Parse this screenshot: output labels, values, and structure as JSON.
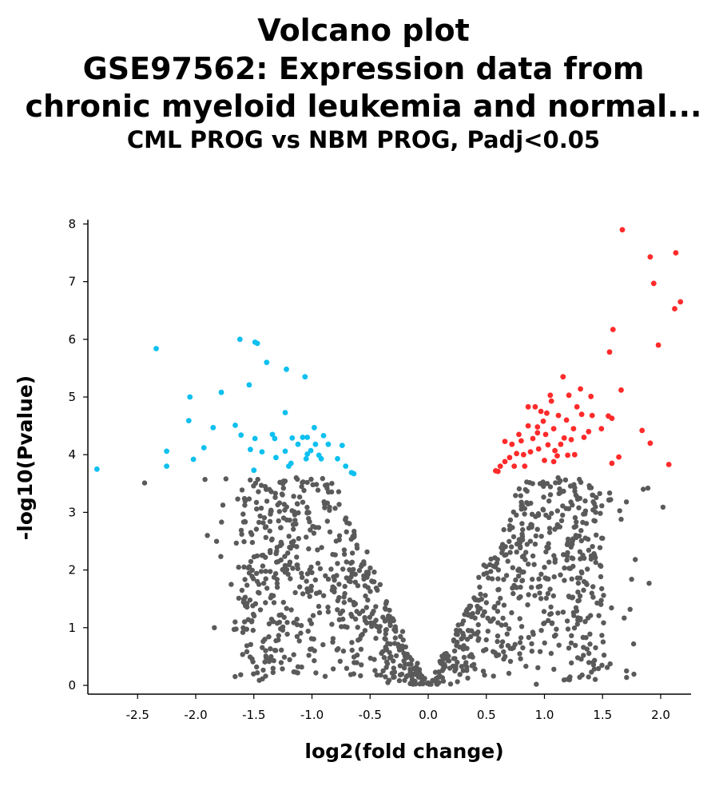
{
  "chart_data": {
    "type": "scatter",
    "title": "Volcano plot",
    "subtitle_lines": [
      "GSE97562: Expression data from",
      "chronic myeloid leukemia and normal...",
      "CML PROG vs NBM PROG, Padj<0.05"
    ],
    "xlabel": "log2(fold change)",
    "ylabel": "-log10(Pvalue)",
    "xlim": [
      -2.95,
      2.27
    ],
    "ylim": [
      -0.15,
      8.05
    ],
    "xticks": [
      -2.5,
      -2.0,
      -1.5,
      -1.0,
      -0.5,
      0.0,
      0.5,
      1.0,
      1.5,
      2.0
    ],
    "xtick_labels": [
      "-2.5",
      "-2.0",
      "-1.5",
      "-1.0",
      "-0.5",
      "0.0",
      "0.5",
      "1.0",
      "1.5",
      "2.0"
    ],
    "yticks": [
      0,
      1,
      2,
      3,
      4,
      5,
      6,
      7,
      8
    ],
    "ytick_labels": [
      "0",
      "1",
      "2",
      "3",
      "4",
      "5",
      "6",
      "7",
      "8"
    ],
    "grid": false,
    "colors": {
      "up": "#ff2a2a",
      "down": "#0dc0f0",
      "ns": "#5a5a5a"
    },
    "series": [
      {
        "group": "down",
        "points": [
          [
            -2.85,
            3.75
          ],
          [
            -2.34,
            5.84
          ],
          [
            -2.25,
            4.06
          ],
          [
            -2.25,
            3.8
          ],
          [
            -2.05,
            5.0
          ],
          [
            -2.06,
            4.59
          ],
          [
            -2.02,
            3.92
          ],
          [
            -1.93,
            4.12
          ],
          [
            -1.85,
            4.47
          ],
          [
            -1.78,
            5.08
          ],
          [
            -1.66,
            4.51
          ],
          [
            -1.62,
            6.0
          ],
          [
            -1.61,
            4.34
          ],
          [
            -1.54,
            5.21
          ],
          [
            -1.53,
            4.09
          ],
          [
            -1.49,
            5.95
          ],
          [
            -1.47,
            5.93
          ],
          [
            -1.49,
            4.28
          ],
          [
            -1.43,
            4.05
          ],
          [
            -1.39,
            5.6
          ],
          [
            -1.34,
            4.35
          ],
          [
            -1.32,
            4.28
          ],
          [
            -1.31,
            3.95
          ],
          [
            -1.22,
            5.48
          ],
          [
            -1.23,
            4.73
          ],
          [
            -1.23,
            4.06
          ],
          [
            -1.2,
            3.8
          ],
          [
            -1.17,
            4.29
          ],
          [
            -1.12,
            4.18
          ],
          [
            -1.08,
            4.3
          ],
          [
            -1.06,
            5.35
          ],
          [
            -1.04,
            4.3
          ],
          [
            -1.04,
            4.01
          ],
          [
            -1.01,
            4.07
          ],
          [
            -0.98,
            4.47
          ],
          [
            -0.97,
            4.18
          ],
          [
            -0.94,
            3.99
          ],
          [
            -0.92,
            3.93
          ],
          [
            -0.9,
            4.33
          ],
          [
            -0.86,
            4.18
          ],
          [
            -0.78,
            3.93
          ],
          [
            -0.74,
            4.16
          ],
          [
            -0.71,
            3.8
          ],
          [
            -0.66,
            3.69
          ],
          [
            -1.5,
            3.73
          ],
          [
            -1.18,
            3.85
          ],
          [
            -1.05,
            3.93
          ],
          [
            -0.64,
            3.67
          ]
        ]
      },
      {
        "group": "up",
        "points": [
          [
            0.6,
            3.71
          ],
          [
            0.62,
            3.8
          ],
          [
            0.66,
            3.88
          ],
          [
            0.7,
            3.95
          ],
          [
            0.72,
            4.18
          ],
          [
            0.74,
            3.8
          ],
          [
            0.76,
            4.02
          ],
          [
            0.78,
            4.35
          ],
          [
            0.8,
            4.24
          ],
          [
            0.82,
            4.0
          ],
          [
            0.83,
            3.8
          ],
          [
            0.86,
            4.5
          ],
          [
            0.86,
            4.83
          ],
          [
            0.88,
            4.05
          ],
          [
            0.9,
            4.28
          ],
          [
            0.92,
            4.83
          ],
          [
            0.94,
            4.38
          ],
          [
            0.95,
            4.1
          ],
          [
            0.97,
            4.75
          ],
          [
            0.99,
            4.58
          ],
          [
            1.0,
            3.9
          ],
          [
            1.01,
            4.35
          ],
          [
            1.02,
            4.72
          ],
          [
            1.03,
            4.17
          ],
          [
            1.05,
            5.03
          ],
          [
            1.06,
            4.93
          ],
          [
            1.08,
            4.45
          ],
          [
            1.09,
            4.07
          ],
          [
            1.11,
            3.98
          ],
          [
            1.12,
            4.68
          ],
          [
            1.14,
            4.18
          ],
          [
            1.16,
            5.35
          ],
          [
            1.17,
            4.29
          ],
          [
            1.19,
            4.6
          ],
          [
            1.2,
            3.99
          ],
          [
            1.21,
            5.03
          ],
          [
            1.23,
            4.26
          ],
          [
            1.25,
            4.45
          ],
          [
            1.28,
            4.83
          ],
          [
            1.31,
            5.14
          ],
          [
            1.32,
            4.7
          ],
          [
            1.34,
            4.3
          ],
          [
            1.38,
            4.4
          ],
          [
            1.4,
            5.01
          ],
          [
            1.49,
            4.45
          ],
          [
            1.55,
            4.67
          ],
          [
            1.56,
            5.78
          ],
          [
            1.58,
            4.63
          ],
          [
            1.59,
            6.17
          ],
          [
            1.64,
            3.96
          ],
          [
            1.66,
            5.12
          ],
          [
            1.67,
            7.9
          ],
          [
            1.84,
            4.42
          ],
          [
            1.91,
            4.2
          ],
          [
            1.91,
            7.43
          ],
          [
            1.94,
            6.97
          ],
          [
            1.98,
            5.9
          ],
          [
            2.07,
            3.83
          ],
          [
            2.12,
            6.53
          ],
          [
            2.13,
            7.5
          ],
          [
            2.17,
            6.65
          ],
          [
            1.58,
            3.85
          ],
          [
            1.41,
            4.68
          ],
          [
            1.26,
            4.0
          ],
          [
            1.08,
            3.88
          ],
          [
            0.94,
            4.48
          ],
          [
            0.66,
            4.23
          ],
          [
            0.58,
            3.72
          ]
        ]
      }
    ],
    "ns_summary": {
      "points_approx": 1150,
      "x_range": [
        -2.45,
        2.05
      ],
      "y_range": [
        0.02,
        3.6
      ],
      "note_points": [
        [
          -2.44,
          3.51
        ],
        [
          -1.9,
          2.6
        ],
        [
          -1.84,
          1.0
        ],
        [
          -1.67,
          0.97
        ],
        [
          -1.92,
          3.57
        ],
        [
          -1.74,
          3.58
        ],
        [
          1.75,
          1.84
        ],
        [
          1.9,
          1.77
        ],
        [
          2.02,
          3.09
        ],
        [
          1.89,
          3.42
        ],
        [
          1.85,
          3.4
        ],
        [
          1.66,
          2.88
        ],
        [
          1.5,
          2.55
        ],
        [
          1.57,
          3.22
        ]
      ]
    }
  }
}
